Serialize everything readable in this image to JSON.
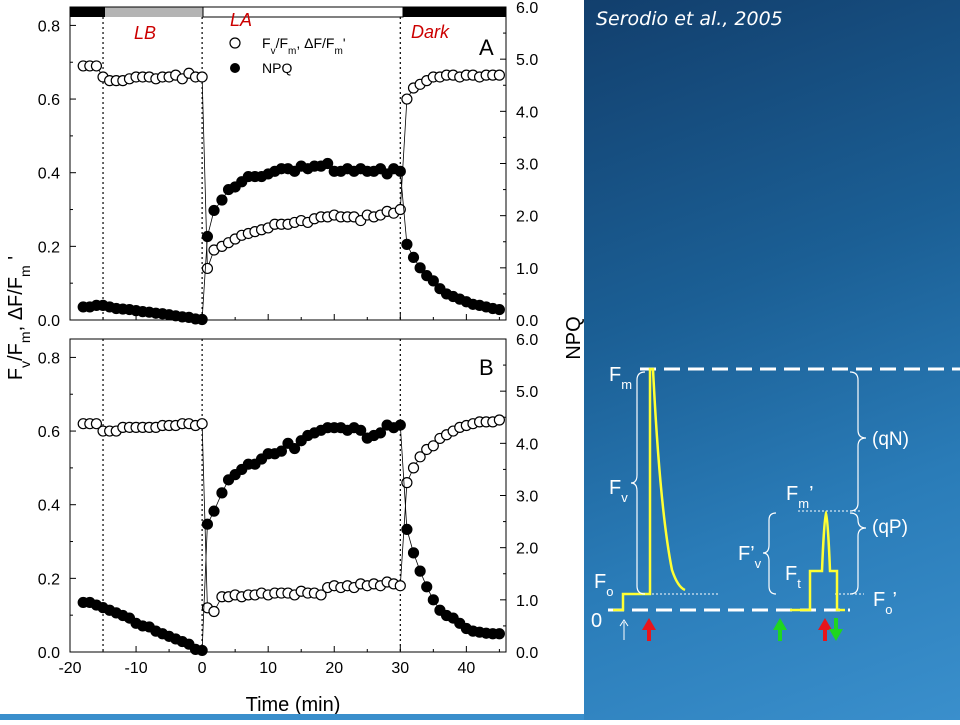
{
  "citation": "Serodio et al., 2005",
  "colors": {
    "lb_label": "#cc0000",
    "la_label": "#cc0000",
    "dark_label": "#cc0000",
    "trace": "#ffff33",
    "red_arrow": "#e8151b",
    "green_arrow": "#1fd61f"
  },
  "light_periods": [
    {
      "label": "LB",
      "from": -20,
      "to": -15,
      "bar": "black-gray"
    },
    {
      "label": "LA",
      "from": 0,
      "to": 30,
      "bar": "white"
    },
    {
      "label": "Dark",
      "from": 30,
      "to": 46,
      "bar": "black"
    }
  ],
  "chart_data": [
    {
      "type": "scatter",
      "panel": "A",
      "x_ticks": [
        "-20",
        "-10",
        "0",
        "10",
        "20",
        "30",
        "40"
      ],
      "xlim": [
        -20,
        46
      ],
      "ylim_left": [
        0,
        0.85
      ],
      "ylim_right": [
        0,
        6
      ],
      "y_ticks_left": [
        "0.0",
        "0.2",
        "0.4",
        "0.6",
        "0.8"
      ],
      "y_ticks_right": [
        "0.0",
        "1.0",
        "2.0",
        "3.0",
        "4.0",
        "5.0",
        "6.0"
      ],
      "vlines": [
        -15,
        0,
        30
      ],
      "legend": [
        "Fᵥ/Fₘ, ΔF/Fₘ'",
        "NPQ"
      ],
      "series": [
        {
          "name": "Fv/Fm, ΔF/Fm'",
          "marker": "open",
          "axis": "left",
          "x": [
            -18,
            -17,
            -16,
            -15,
            -14,
            -13,
            -12,
            -11,
            -10,
            -9,
            -8,
            -7,
            -6,
            -5,
            -4,
            -3,
            -2,
            -1,
            0,
            0.8,
            1.8,
            3,
            4,
            5,
            6,
            7,
            8,
            9,
            10,
            11,
            12,
            13,
            14,
            15,
            16,
            17,
            18,
            19,
            20,
            21,
            22,
            23,
            24,
            25,
            26,
            27,
            28,
            29,
            30,
            31,
            32,
            33,
            34,
            35,
            36,
            37,
            38,
            39,
            40,
            41,
            42,
            43,
            44,
            45
          ],
          "y": [
            0.69,
            0.69,
            0.69,
            0.66,
            0.65,
            0.65,
            0.65,
            0.655,
            0.66,
            0.66,
            0.66,
            0.655,
            0.66,
            0.66,
            0.665,
            0.655,
            0.67,
            0.66,
            0.66,
            0.14,
            0.19,
            0.2,
            0.21,
            0.22,
            0.23,
            0.235,
            0.24,
            0.245,
            0.25,
            0.26,
            0.26,
            0.26,
            0.265,
            0.27,
            0.265,
            0.275,
            0.28,
            0.28,
            0.285,
            0.28,
            0.28,
            0.28,
            0.27,
            0.285,
            0.28,
            0.285,
            0.295,
            0.29,
            0.3,
            0.6,
            0.63,
            0.64,
            0.65,
            0.66,
            0.66,
            0.665,
            0.665,
            0.66,
            0.665,
            0.665,
            0.66,
            0.665,
            0.665,
            0.665
          ]
        },
        {
          "name": "NPQ",
          "marker": "filled",
          "axis": "right",
          "x": [
            -18,
            -17,
            -16,
            -15,
            -14,
            -13,
            -12,
            -11,
            -10,
            -9,
            -8,
            -7,
            -6,
            -5,
            -4,
            -3,
            -2,
            -1,
            0,
            0.8,
            1.8,
            3,
            4,
            5,
            6,
            7,
            8,
            9,
            10,
            11,
            12,
            13,
            14,
            15,
            16,
            17,
            18,
            19,
            20,
            21,
            22,
            23,
            24,
            25,
            26,
            27,
            28,
            29,
            30,
            31,
            32,
            33,
            34,
            35,
            36,
            37,
            38,
            39,
            40,
            41,
            42,
            43,
            44,
            45
          ],
          "y": [
            0.25,
            0.25,
            0.28,
            0.28,
            0.25,
            0.22,
            0.21,
            0.2,
            0.18,
            0.16,
            0.15,
            0.13,
            0.12,
            0.1,
            0.08,
            0.06,
            0.05,
            0.02,
            0.01,
            1.6,
            2.1,
            2.3,
            2.5,
            2.55,
            2.65,
            2.75,
            2.75,
            2.75,
            2.8,
            2.85,
            2.9,
            2.9,
            2.85,
            2.95,
            2.9,
            2.95,
            2.95,
            3.0,
            2.85,
            2.85,
            2.9,
            2.85,
            2.9,
            2.85,
            2.85,
            2.9,
            2.8,
            2.9,
            2.85,
            1.45,
            1.2,
            1.0,
            0.85,
            0.75,
            0.6,
            0.5,
            0.45,
            0.4,
            0.35,
            0.3,
            0.28,
            0.25,
            0.22,
            0.2
          ]
        }
      ]
    },
    {
      "type": "scatter",
      "panel": "B",
      "x_ticks": [
        "-20",
        "-10",
        "0",
        "10",
        "20",
        "30",
        "40"
      ],
      "xlim": [
        -20,
        46
      ],
      "ylim_left": [
        0,
        0.85
      ],
      "ylim_right": [
        0,
        6
      ],
      "y_ticks_left": [
        "0.0",
        "0.2",
        "0.4",
        "0.6",
        "0.8"
      ],
      "y_ticks_right": [
        "0.0",
        "1.0",
        "2.0",
        "3.0",
        "4.0",
        "5.0",
        "6.0"
      ],
      "vlines": [
        -15,
        0,
        30
      ],
      "series": [
        {
          "name": "Fv/Fm, ΔF/Fm'",
          "marker": "open",
          "axis": "left",
          "x": [
            -18,
            -17,
            -16,
            -15,
            -14,
            -13,
            -12,
            -11,
            -10,
            -9,
            -8,
            -7,
            -6,
            -5,
            -4,
            -3,
            -2,
            -1,
            0,
            0.8,
            1.8,
            3,
            4,
            5,
            6,
            7,
            8,
            9,
            10,
            11,
            12,
            13,
            14,
            15,
            16,
            17,
            18,
            19,
            20,
            21,
            22,
            23,
            24,
            25,
            26,
            27,
            28,
            29,
            30,
            31,
            32,
            33,
            34,
            35,
            36,
            37,
            38,
            39,
            40,
            41,
            42,
            43,
            44,
            45
          ],
          "y": [
            0.62,
            0.62,
            0.62,
            0.6,
            0.6,
            0.6,
            0.61,
            0.61,
            0.61,
            0.61,
            0.61,
            0.61,
            0.615,
            0.615,
            0.615,
            0.62,
            0.62,
            0.615,
            0.62,
            0.12,
            0.11,
            0.15,
            0.15,
            0.155,
            0.15,
            0.155,
            0.155,
            0.16,
            0.155,
            0.16,
            0.16,
            0.16,
            0.155,
            0.165,
            0.16,
            0.16,
            0.155,
            0.175,
            0.18,
            0.175,
            0.18,
            0.175,
            0.185,
            0.18,
            0.185,
            0.18,
            0.19,
            0.185,
            0.18,
            0.46,
            0.5,
            0.53,
            0.55,
            0.56,
            0.58,
            0.59,
            0.6,
            0.61,
            0.615,
            0.62,
            0.625,
            0.625,
            0.625,
            0.63
          ]
        },
        {
          "name": "NPQ",
          "marker": "filled",
          "axis": "right",
          "x": [
            -18,
            -17,
            -16,
            -15,
            -14,
            -13,
            -12,
            -11,
            -10,
            -9,
            -8,
            -7,
            -6,
            -5,
            -4,
            -3,
            -2,
            -1,
            0,
            0.8,
            1.8,
            3,
            4,
            5,
            6,
            7,
            8,
            9,
            10,
            11,
            12,
            13,
            14,
            15,
            16,
            17,
            18,
            19,
            20,
            21,
            22,
            23,
            24,
            25,
            26,
            27,
            28,
            29,
            30,
            31,
            32,
            33,
            34,
            35,
            36,
            37,
            38,
            39,
            40,
            41,
            42,
            43,
            44,
            45
          ],
          "y": [
            0.95,
            0.95,
            0.9,
            0.85,
            0.8,
            0.75,
            0.7,
            0.65,
            0.55,
            0.5,
            0.48,
            0.4,
            0.35,
            0.3,
            0.25,
            0.2,
            0.15,
            0.05,
            0.03,
            2.45,
            2.7,
            3.05,
            3.3,
            3.4,
            3.5,
            3.6,
            3.6,
            3.7,
            3.8,
            3.8,
            3.85,
            4.0,
            3.9,
            4.05,
            4.15,
            4.2,
            4.25,
            4.3,
            4.3,
            4.3,
            4.25,
            4.3,
            4.25,
            4.1,
            4.15,
            4.2,
            4.35,
            4.3,
            4.35,
            2.35,
            1.9,
            1.55,
            1.25,
            1.0,
            0.8,
            0.7,
            0.65,
            0.55,
            0.45,
            0.4,
            0.38,
            0.36,
            0.35,
            0.35
          ]
        }
      ]
    }
  ],
  "axes": {
    "xlabel": "Time (min)",
    "ylabel_left_main": "F",
    "ylabel_right": "NPQ",
    "panel_a": "A",
    "panel_b": "B"
  },
  "diagram": {
    "fm": "F",
    "fm_sub": "m",
    "fv": "F",
    "fv_sub": "v",
    "fo": "F",
    "fo_sub": "o",
    "zero": "0",
    "fm_prime": "F",
    "fm_prime_sub": "m",
    "fv_prime": "F’",
    "fv_prime_sub": "v",
    "ft": "F",
    "ft_sub": "t",
    "fo_prime": "F",
    "fo_prime_sub": "o",
    "prime": "’",
    "qn": "(qN)",
    "qp": "(qP)"
  }
}
